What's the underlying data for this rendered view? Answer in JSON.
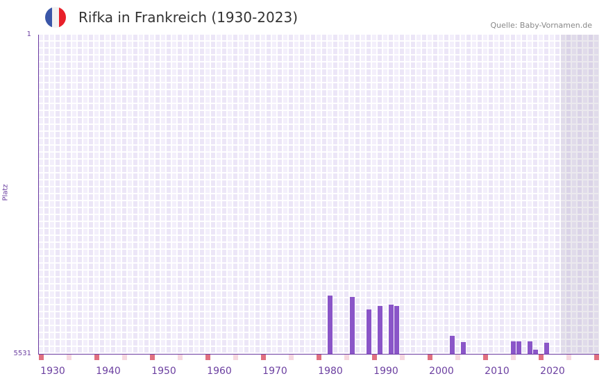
{
  "header": {
    "title": "Rifka in Frankreich (1930-2023)",
    "source": "Quelle: Baby-Vornamen.de"
  },
  "colors": {
    "bar": "#8a55c8",
    "flag_blue": "#3a56a8",
    "flag_white": "#f2f2f2",
    "flag_red": "#e8202a",
    "decade_marker": "#e07080",
    "half_marker": "#f6d8e0"
  },
  "chart_data": {
    "type": "bar",
    "title": "Rifka in Frankreich (1930-2023)",
    "ylabel": "Platz",
    "ylim": [
      5531,
      1
    ],
    "yticks": [
      "1",
      "5531"
    ],
    "xlim": [
      1928,
      2028
    ],
    "xticks": [
      "1930",
      "1940",
      "1950",
      "1960",
      "1970",
      "1980",
      "1990",
      "2000",
      "2010",
      "2020"
    ],
    "shaded_from": 2022,
    "x": [
      1980,
      1984,
      1987,
      1989,
      1991,
      1992,
      2002,
      2004,
      2013,
      2014,
      2016,
      2017,
      2019
    ],
    "values": [
      4521,
      4545,
      4761,
      4701,
      4677,
      4701,
      5218,
      5326,
      5314,
      5314,
      5314,
      5458,
      5338
    ]
  }
}
